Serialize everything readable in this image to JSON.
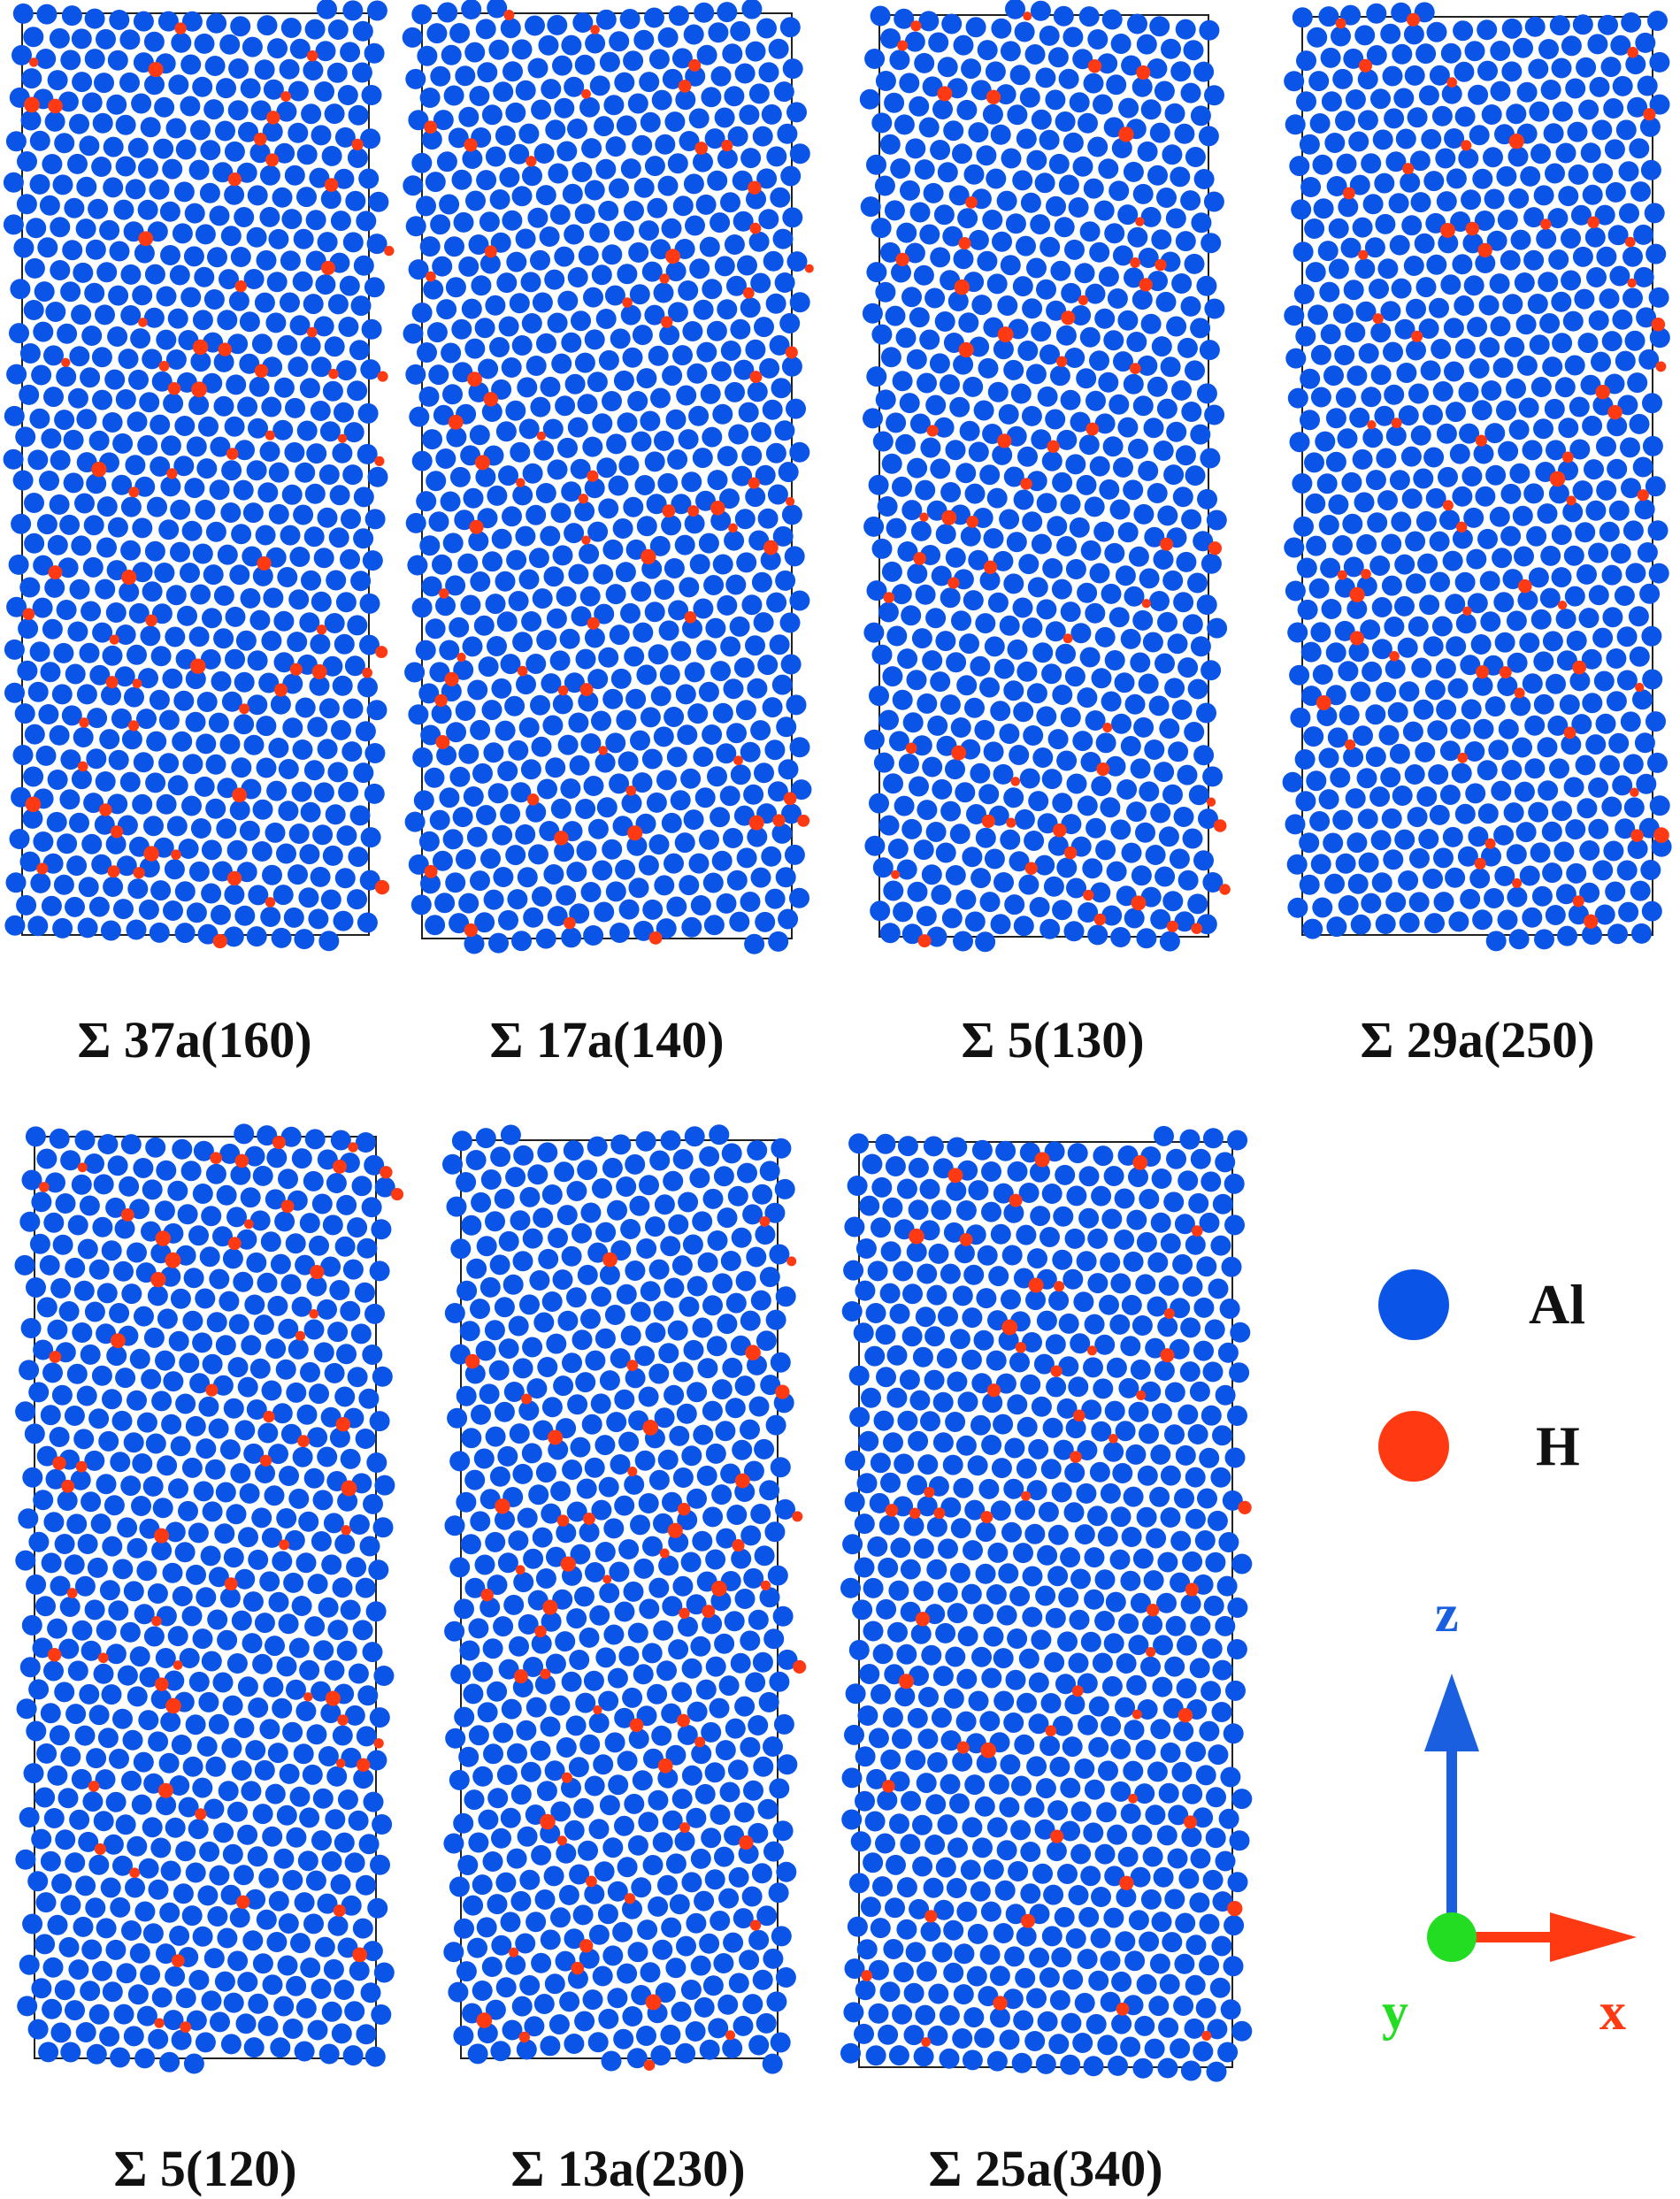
{
  "panels": [
    {
      "label": "Σ 37a(160)"
    },
    {
      "label": "Σ 17a(140)"
    },
    {
      "label": "Σ 5(130)"
    },
    {
      "label": "Σ 29a(250)"
    },
    {
      "label": "Σ 5(120)"
    },
    {
      "label": "Σ 13a(230)"
    },
    {
      "label": "Σ 25a(340)"
    }
  ],
  "legend": {
    "items": [
      {
        "label": "Al",
        "color": "#0a55e8"
      },
      {
        "label": "H",
        "color": "#ff3a12"
      }
    ]
  },
  "axes": {
    "z_label": "z",
    "x_label": "x",
    "y_label": "y",
    "z_color": "#1a5fe0",
    "x_color": "#ff3a12",
    "y_color": "#22dd22"
  }
}
